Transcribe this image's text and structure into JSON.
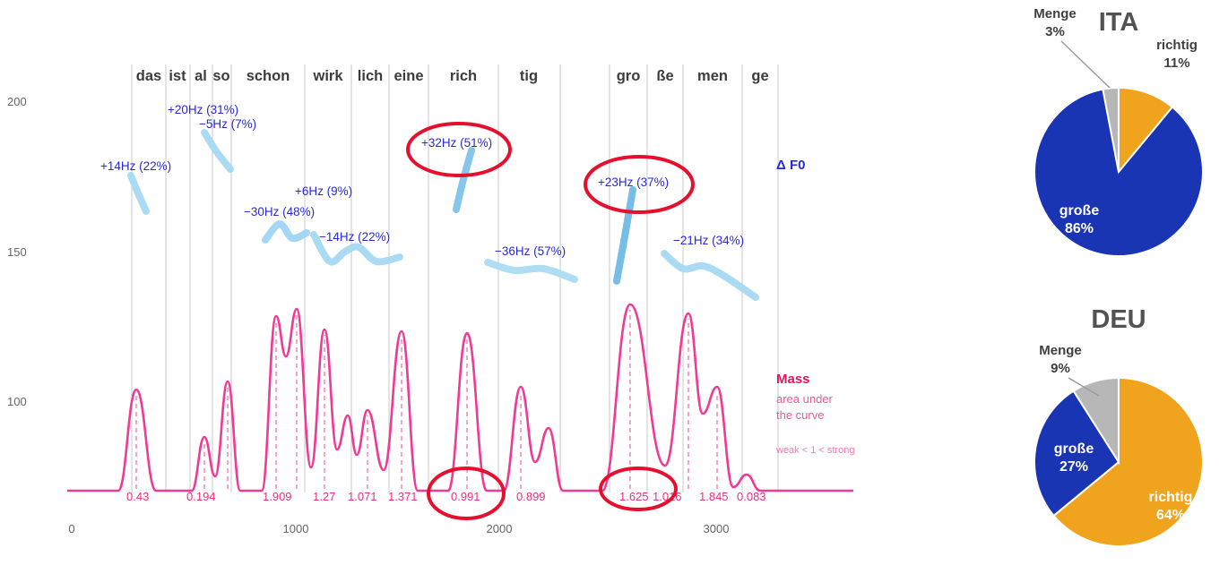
{
  "chart_data": {
    "prosody_plot": {
      "type": "line",
      "words": [
        "das",
        "ist",
        "al",
        "so",
        "schon",
        "wirk",
        "lich",
        "eine",
        "rich",
        "tig",
        "gro",
        "ße",
        "men",
        "ge"
      ],
      "f0_annotations": [
        {
          "text": "+14Hz (22%)",
          "word": "das",
          "highlighted": false
        },
        {
          "text": "+20Hz (31%)",
          "word": "ist",
          "highlighted": false
        },
        {
          "text": "−5Hz (7%)",
          "word": "al",
          "highlighted": false
        },
        {
          "text": "−30Hz (48%)",
          "word": "schon",
          "highlighted": false
        },
        {
          "text": "+6Hz (9%)",
          "word": "wirk",
          "highlighted": false
        },
        {
          "text": "−14Hz (22%)",
          "word": "wirk",
          "highlighted": false
        },
        {
          "text": "+32Hz (51%)",
          "word": "rich",
          "highlighted": true
        },
        {
          "text": "−36Hz (57%)",
          "word": "tig",
          "highlighted": false
        },
        {
          "text": "+23Hz (37%)",
          "word": "gro",
          "highlighted": true
        },
        {
          "text": "−21Hz (34%)",
          "word": "men",
          "highlighted": false
        }
      ],
      "mass_values": [
        0.43,
        0.194,
        1.909,
        1.27,
        1.071,
        1.371,
        0.991,
        0.899,
        1.625,
        1.016,
        1.845,
        0.083
      ],
      "highlighted_mass_indices": [
        6,
        8
      ],
      "y_ticks": [
        100,
        150,
        200
      ],
      "x_ticks": [
        0,
        1000,
        2000,
        3000
      ],
      "series_labels": {
        "f0": "Δ F0"
      },
      "mass_legend": {
        "title": "Mass",
        "line1": "area under",
        "line2": "the curve",
        "scale_note": "weak < 1 < strong"
      },
      "colors": {
        "f0_contour": "#a6d9f2",
        "f0_text": "#2929d6",
        "mass_curve": "#f03a93",
        "highlight": "#e50f2e",
        "gridline": "#c9c9c9"
      }
    },
    "ita_pie": {
      "type": "pie",
      "title": "ITA",
      "labels": [
        "richtig",
        "große",
        "Menge"
      ],
      "values": [
        11,
        86,
        3
      ],
      "pct_labels": [
        "11%",
        "86%",
        "3%"
      ],
      "colors": [
        "#f0a31c",
        "#1a35b4",
        "#b7b7b7"
      ],
      "legend_position": "outside-and-inside"
    },
    "deu_pie": {
      "type": "pie",
      "title": "DEU",
      "labels": [
        "richtig",
        "große",
        "Menge"
      ],
      "values": [
        64,
        27,
        9
      ],
      "pct_labels": [
        "64%",
        "27%",
        "9%"
      ],
      "colors": [
        "#f0a31c",
        "#1a35b4",
        "#b7b7b7"
      ],
      "legend_position": "outside-and-inside"
    }
  }
}
